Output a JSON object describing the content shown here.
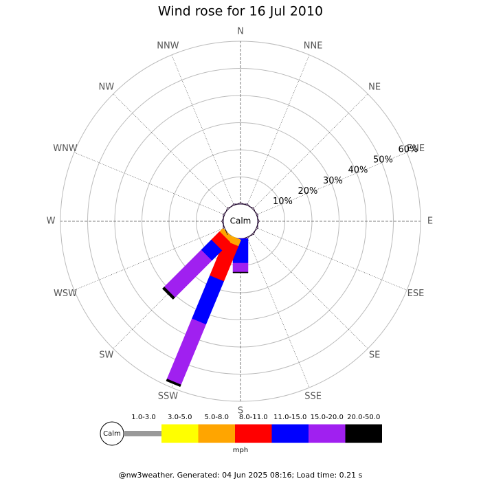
{
  "chart_data": {
    "type": "windrose",
    "title": "Wind rose for 16 Jul 2010",
    "calm_label": "Calm",
    "units": "mph",
    "footer": "@nw3weather. Generated: 04 Jun 2025 08:16; Load time: 0.21 s",
    "categories": [
      "N",
      "NNE",
      "NE",
      "ENE",
      "E",
      "ESE",
      "SE",
      "SSE",
      "S",
      "SSW",
      "SW",
      "WSW",
      "W",
      "WNW",
      "NW",
      "NNW"
    ],
    "rlim": [
      0,
      60
    ],
    "rticks": [
      {
        "value": 10,
        "label": "10%"
      },
      {
        "value": 20,
        "label": "20%"
      },
      {
        "value": 30,
        "label": "30%"
      },
      {
        "value": 40,
        "label": "40%"
      },
      {
        "value": 50,
        "label": "50%"
      },
      {
        "value": 60,
        "label": "60%"
      }
    ],
    "series": [
      {
        "name": "1.0-3.0",
        "color": "#999999",
        "values": [
          0,
          0,
          0,
          0,
          0,
          0,
          0,
          0,
          0,
          0,
          0,
          0,
          0,
          0,
          0,
          0
        ]
      },
      {
        "name": "3.0-5.0",
        "color": "#ffff00",
        "values": [
          0,
          0,
          0,
          0,
          0,
          0,
          0,
          0,
          0,
          0,
          0,
          0,
          0,
          0,
          0,
          0
        ]
      },
      {
        "name": "5.0-8.0",
        "color": "#ffa500",
        "values": [
          0,
          0,
          0,
          0,
          0,
          0,
          0,
          0,
          0,
          2.5,
          1.8,
          0,
          0,
          0,
          0,
          0
        ]
      },
      {
        "name": "8.0-11.0",
        "color": "#ff0000",
        "values": [
          0,
          0,
          0,
          0,
          0,
          0,
          0,
          0,
          0,
          14.0,
          4.3,
          0,
          0,
          0,
          0,
          0
        ]
      },
      {
        "name": "11.0-15.0",
        "color": "#0000ff",
        "values": [
          0,
          0,
          0,
          0,
          0,
          0,
          0,
          0,
          9.1,
          17.2,
          5.3,
          0,
          0,
          0,
          0,
          0
        ]
      },
      {
        "name": "15.0-20.0",
        "color": "#a020f0",
        "values": [
          0,
          0,
          0,
          0,
          0,
          0,
          0,
          0,
          3.3,
          24.0,
          19.2,
          0,
          0,
          0,
          0,
          0
        ]
      },
      {
        "name": "20.0-50.0",
        "color": "#000000",
        "values": [
          0,
          0,
          0,
          0,
          0,
          0,
          0,
          0,
          0.3,
          0.8,
          1.0,
          0,
          0,
          0,
          0,
          0
        ]
      }
    ]
  }
}
